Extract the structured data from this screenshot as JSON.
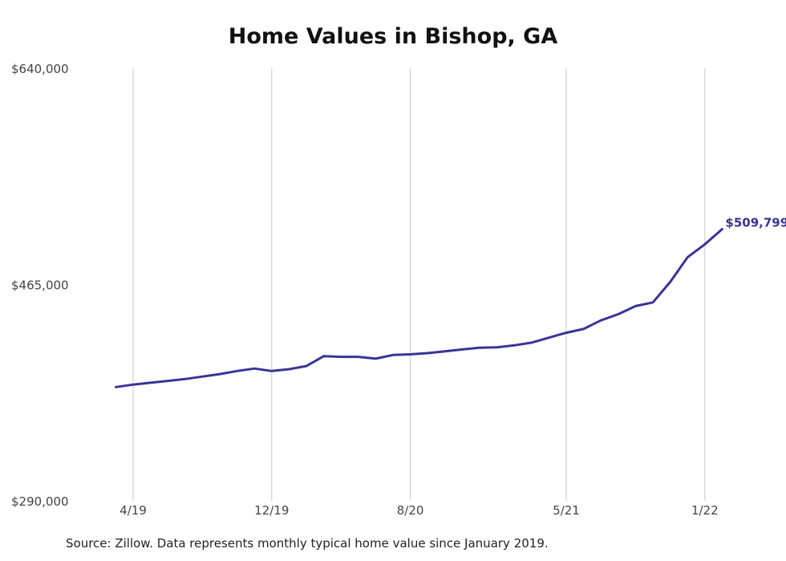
{
  "chart_data": {
    "type": "line",
    "title": "Home Values in Bishop, GA",
    "source": "Source: Zillow. Data represents monthly typical home value since January 2019.",
    "y_ticks": [
      "$640,000",
      "$465,000",
      "$290,000"
    ],
    "ylim": [
      290000,
      640000
    ],
    "x_ticks": [
      "4/19",
      "12/19",
      "8/20",
      "5/21",
      "1/22"
    ],
    "x_tick_months": [
      "2019-04",
      "2019-12",
      "2020-08",
      "2021-05",
      "2022-01"
    ],
    "grid": "vertical",
    "series": [
      {
        "color": "#3b3398",
        "end_label": "$509,799",
        "x": [
          "2019-03",
          "2019-04",
          "2019-05",
          "2019-06",
          "2019-07",
          "2019-08",
          "2019-09",
          "2019-10",
          "2019-11",
          "2019-12",
          "2020-01",
          "2020-02",
          "2020-03",
          "2020-04",
          "2020-05",
          "2020-06",
          "2020-07",
          "2020-08",
          "2020-09",
          "2020-10",
          "2020-11",
          "2020-12",
          "2021-01",
          "2021-02",
          "2021-03",
          "2021-04",
          "2021-05",
          "2021-06",
          "2021-07",
          "2021-08",
          "2021-09",
          "2021-10",
          "2021-11",
          "2021-12",
          "2022-01",
          "2022-02"
        ],
        "values": [
          382000,
          384000,
          385500,
          387000,
          388500,
          390500,
          392500,
          395000,
          397000,
          395000,
          396500,
          399000,
          407000,
          406500,
          406500,
          405000,
          408000,
          408500,
          409500,
          411000,
          412500,
          413800,
          414200,
          415800,
          418000,
          422000,
          426000,
          429000,
          436000,
          441000,
          447500,
          450500,
          467000,
          487000,
          497500,
          509799
        ]
      }
    ]
  }
}
